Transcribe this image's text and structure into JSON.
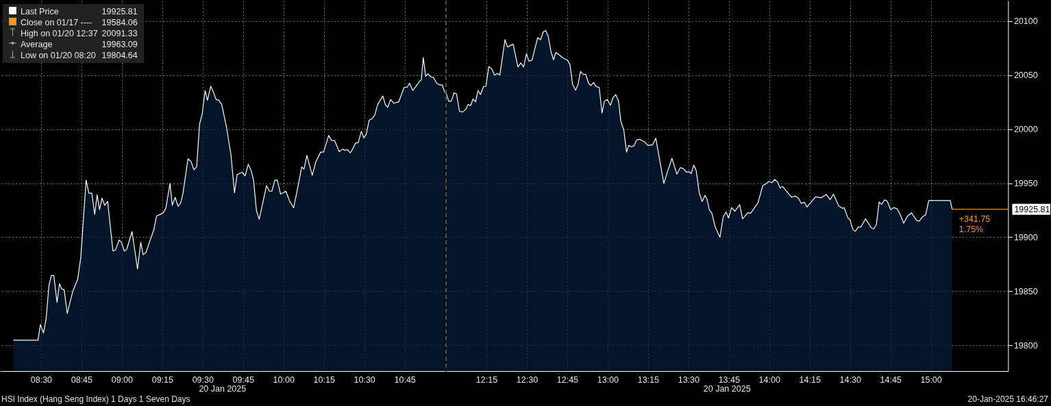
{
  "chart_data": [
    {
      "type": "area",
      "annotations": [
        "19925.81",
        "Close on 01/17 ----",
        "19584.06",
        "High on 01/20 12:37",
        "20091.33",
        "Average",
        "19963.09",
        "Low on 01/20 08:20",
        "19804.64",
        "20 Jan 2025",
        "HSI Index (Hang Seng Index) 1 Days 1 Seven Days"
      ],
      "x": [
        8.329,
        8.481,
        8.496,
        8.515,
        8.531,
        8.549,
        8.564,
        8.579,
        8.599,
        8.614,
        8.627,
        8.643,
        8.662,
        8.697,
        8.727,
        8.746,
        8.779,
        8.796,
        8.814,
        8.832,
        8.847,
        8.862,
        8.877,
        8.894,
        8.912,
        8.945,
        8.961,
        8.983,
        8.998,
        9.015,
        9.03,
        9.063,
        9.097,
        9.117,
        9.132,
        9.15,
        9.17,
        9.197,
        9.215,
        9.257,
        9.272,
        9.298,
        9.312,
        9.33,
        9.348,
        9.363,
        9.378,
        9.409,
        9.428,
        9.446,
        9.463,
        9.481,
        9.497,
        9.515,
        9.53,
        9.55,
        9.565,
        9.583,
        9.6,
        9.618,
        9.648,
        9.675,
        9.697,
        9.713,
        9.743,
        9.763,
        9.782,
        9.8,
        9.815,
        9.833,
        9.85,
        9.875,
        9.895,
        9.913,
        9.928,
        9.947,
        9.962,
        9.982,
        10.015,
        10.038,
        10.063,
        10.09,
        10.113,
        10.127,
        10.145,
        10.178,
        10.2,
        10.23,
        10.248,
        10.28,
        10.298,
        10.317,
        10.345,
        10.365,
        10.38,
        10.395,
        10.413,
        10.428,
        10.447,
        10.462,
        10.482,
        10.497,
        10.512,
        10.53,
        10.55,
        10.565,
        10.583,
        10.615,
        10.63,
        10.645,
        10.663,
        10.682,
        10.713,
        10.747,
        10.765,
        10.78,
        10.8,
        10.845,
        10.853,
        10.865,
        10.88,
        10.895,
        10.913,
        10.928,
        10.948,
        10.967,
        10.982,
        11.0
      ],
      "series": [
        {
          "name": "Last Price",
          "color": "#061d3a",
          "values": [
            19804.6,
            19804.6,
            19819.2,
            19811.3,
            19823.8,
            19855.4,
            19864.5,
            19864.5,
            19839.6,
            19857.0,
            19852.1,
            19851.4,
            19829.4,
            19850.2,
            19861.1,
            19881.5,
            19952.8,
            19940.8,
            19940.8,
            19921.1,
            19939.2,
            19925.6,
            19936.2,
            19929.5,
            19933.1,
            19887.1,
            19888.3,
            19897.3,
            19895.1,
            19887.1,
            19888.7,
            19905.2,
            19870.6,
            19895.1,
            19883.7,
            19886.0,
            19895.1,
            19906.4,
            19919.5,
            19922.7,
            19926.7,
            19949.8,
            19929.5,
            19936.9,
            19928.6,
            19931.3,
            19940.3,
            19972.5,
            19970.2,
            19962.3,
            19965.2,
            20004.8,
            20013.9,
            20035.8,
            20026.8,
            20039.9,
            20034.9,
            20027.5,
            20026.8,
            20022.9,
            20001.4,
            19976.5,
            19941.0,
            19958.0,
            19960.0,
            19956.8,
            19967.5,
            19961.8,
            19952.8,
            19924.5,
            19916.6,
            19934.0,
            19947.8,
            19942.6,
            19942.6,
            19952.8,
            19952.8,
            19939.9,
            19942.6,
            19933.5,
            19927.2,
            19947.1,
            19965.2,
            19963.0,
            19975.8,
            19957.3,
            19969.7,
            19978.8,
            19978.8,
            19994.2,
            19989.6,
            19989.4,
            19979.2,
            19981.5,
            19980.4,
            19981.1,
            19978.1,
            19981.5,
            19987.4,
            19987.4,
            19998.0,
            19991.9,
            19995.1,
            20008.2,
            20010.0,
            20013.2,
            20022.9,
            20030.8,
            20022.9,
            20020.2,
            20027.5,
            20024.1,
            20025.2,
            20038.8,
            20038.8,
            20042.6,
            20035.8,
            20044.9,
            20045.6,
            20066.4,
            20049.0,
            20051.3,
            20048.3,
            20047.9,
            20042.6,
            20041.0,
            20041.0,
            20033.6
          ]
        }
      ],
      "xlim": [
        8.246,
        11.0
      ],
      "xticks": [
        {
          "value": 8.5,
          "label": "08:30"
        },
        {
          "value": 8.75,
          "label": "08:45"
        },
        {
          "value": 9,
          "label": "09:00"
        },
        {
          "value": 9.25,
          "label": "09:15"
        },
        {
          "value": 9.5,
          "label": "09:30"
        },
        {
          "value": 9.75,
          "label": "09:45"
        },
        {
          "value": 10,
          "label": "10:00"
        },
        {
          "value": 10.25,
          "label": "10:15"
        },
        {
          "value": 10.5,
          "label": "10:30"
        },
        {
          "value": 10.75,
          "label": "10:45"
        }
      ],
      "ylim": [
        19776,
        20119
      ],
      "yticks": [
        19800,
        19850,
        19900,
        19950,
        20000,
        20050,
        20100
      ],
      "tick_labels": "x",
      "grid": true,
      "legend": "top left"
    },
    {
      "type": "area",
      "annotations": [
        "20 Jan 2025",
        "20-Jan-2025 16:46:27",
        {
          "text": "+341.75",
          "x": 15.132,
          "y": 19925.81
        },
        {
          "text": "1.75%",
          "x": 15.132,
          "y": 19925.81
        }
      ],
      "x": [
        12.0,
        12.017,
        12.032,
        12.05,
        12.065,
        12.083,
        12.103,
        12.122,
        12.137,
        12.152,
        12.167,
        12.183,
        12.198,
        12.213,
        12.232,
        12.247,
        12.265,
        12.282,
        12.3,
        12.318,
        12.333,
        12.365,
        12.38,
        12.415,
        12.445,
        12.463,
        12.48,
        12.498,
        12.513,
        12.532,
        12.567,
        12.585,
        12.602,
        12.617,
        12.632,
        12.65,
        12.665,
        12.68,
        12.725,
        12.753,
        12.767,
        12.783,
        12.802,
        12.817,
        12.832,
        12.85,
        12.865,
        12.882,
        12.897,
        12.912,
        12.93,
        12.948,
        12.965,
        12.98,
        12.998,
        13.017,
        13.033,
        13.05,
        13.067,
        13.082,
        13.1,
        13.117,
        13.13,
        13.147,
        13.162,
        13.18,
        13.198,
        13.228,
        13.25,
        13.278,
        13.298,
        13.348,
        13.368,
        13.398,
        13.428,
        13.45,
        13.468,
        13.488,
        13.503,
        13.517,
        13.533,
        13.548,
        13.567,
        13.585,
        13.602,
        13.615,
        13.63,
        13.645,
        13.665,
        13.695,
        13.715,
        13.733,
        13.748,
        13.767,
        13.787,
        13.817,
        13.835,
        13.867,
        13.885,
        13.93,
        13.96,
        13.98,
        13.998,
        14.017,
        14.033,
        14.052,
        14.067,
        14.082,
        14.138,
        14.16,
        14.18,
        14.198,
        14.218,
        14.233,
        14.255,
        14.287,
        14.323,
        14.352,
        14.377,
        14.397,
        14.43,
        14.453,
        14.463,
        14.487,
        14.5,
        14.518,
        14.532,
        14.551,
        14.567,
        14.596,
        14.631,
        14.647,
        14.663,
        14.68,
        14.695,
        14.714,
        14.73,
        14.751,
        14.771,
        14.792,
        14.811,
        14.832,
        14.853,
        14.88,
        14.912,
        14.928,
        14.949,
        14.968,
        14.987,
        15.0,
        15.12,
        15.132
      ],
      "series": [
        {
          "color": "#061d3a",
          "values": [
            20033.6,
            20025.9,
            20025.9,
            20033.6,
            20032.7,
            20016.6,
            20015.9,
            20018.4,
            20022.9,
            20021.8,
            20027.9,
            20025.2,
            20035.8,
            20032.0,
            20039.4,
            20039.9,
            20058.0,
            20056.2,
            20050.1,
            20051.7,
            20050.1,
            20082.9,
            20076.1,
            20078.8,
            20057.6,
            20061.4,
            20057.6,
            20069.8,
            20063.0,
            20064.1,
            20084.7,
            20082.9,
            20090.1,
            20091.3,
            20086.3,
            20071.6,
            20064.3,
            20071.1,
            20065.9,
            20063.7,
            20059.8,
            20041.5,
            20036.1,
            20041.5,
            20053.5,
            20050.8,
            20050.8,
            20042.6,
            20040.4,
            20043.3,
            20039.3,
            20038.8,
            20015.0,
            20025.9,
            20027.5,
            20022.2,
            20029.0,
            20032.0,
            20026.3,
            20007.1,
            19999.2,
            19978.8,
            19985.0,
            19983.8,
            19984.5,
            19990.1,
            19990.6,
            19988.3,
            19985.0,
            19985.6,
            19991.7,
            19949.8,
            19959.6,
            19973.1,
            19958.4,
            19964.5,
            19963.4,
            19960.2,
            19960.7,
            19958.9,
            19966.8,
            19961.8,
            19941.0,
            19933.1,
            19938.7,
            19935.1,
            19925.2,
            19922.2,
            19909.8,
            19900.0,
            19918.8,
            19923.3,
            19917.7,
            19927.4,
            19924.0,
            19930.1,
            19917.0,
            19922.7,
            19922.2,
            19931.7,
            19947.8,
            19949.4,
            19951.6,
            19950.5,
            19953.4,
            19951.2,
            19945.5,
            19947.1,
            19936.9,
            19938.1,
            19936.2,
            19931.3,
            19932.4,
            19927.9,
            19931.7,
            19937.4,
            19936.5,
            19939.6,
            19934.7,
            19939.9,
            19929.0,
            19926.7,
            19927.4,
            19917.8,
            19915.9,
            19907.0,
            19905.4,
            19909.4,
            19909.4,
            19917.1,
            19908.7,
            19907.7,
            19911.8,
            19932.6,
            19930.3,
            19934.6,
            19933.4,
            19925.5,
            19927.4,
            19926.2,
            19920.7,
            19913.0,
            19919.0,
            19922.6,
            19915.4,
            19914.9,
            19919.0,
            19920.7,
            19933.9,
            19933.9,
            19933.9,
            19925.8
          ]
        }
      ],
      "xlim": [
        12.0,
        15.478
      ],
      "xticks": [
        {
          "value": 12.25,
          "label": "12:15"
        },
        {
          "value": 12.5,
          "label": "12:30"
        },
        {
          "value": 12.75,
          "label": "12:45"
        },
        {
          "value": 13,
          "label": "13:00"
        },
        {
          "value": 13.25,
          "label": "13:15"
        },
        {
          "value": 13.5,
          "label": "13:30"
        },
        {
          "value": 13.75,
          "label": "13:45"
        },
        {
          "value": 14,
          "label": "14:00"
        },
        {
          "value": 14.25,
          "label": "14:15"
        },
        {
          "value": 14.5,
          "label": "14:30"
        },
        {
          "value": 14.75,
          "label": "14:45"
        },
        {
          "value": 15,
          "label": "15:00"
        }
      ],
      "ylim": [
        19776,
        20119
      ],
      "yticks": [
        19800,
        19850,
        19900,
        19950,
        20000,
        20050,
        20100
      ],
      "ref_lines": [
        {
          "axis": "x",
          "value": 12,
          "line_style": "dashed",
          "color": "#9a9a9a"
        },
        {
          "axis": "y",
          "value": 19925.81,
          "label": "19925.81",
          "color": "#f7941d"
        }
      ],
      "grid": true
    }
  ]
}
